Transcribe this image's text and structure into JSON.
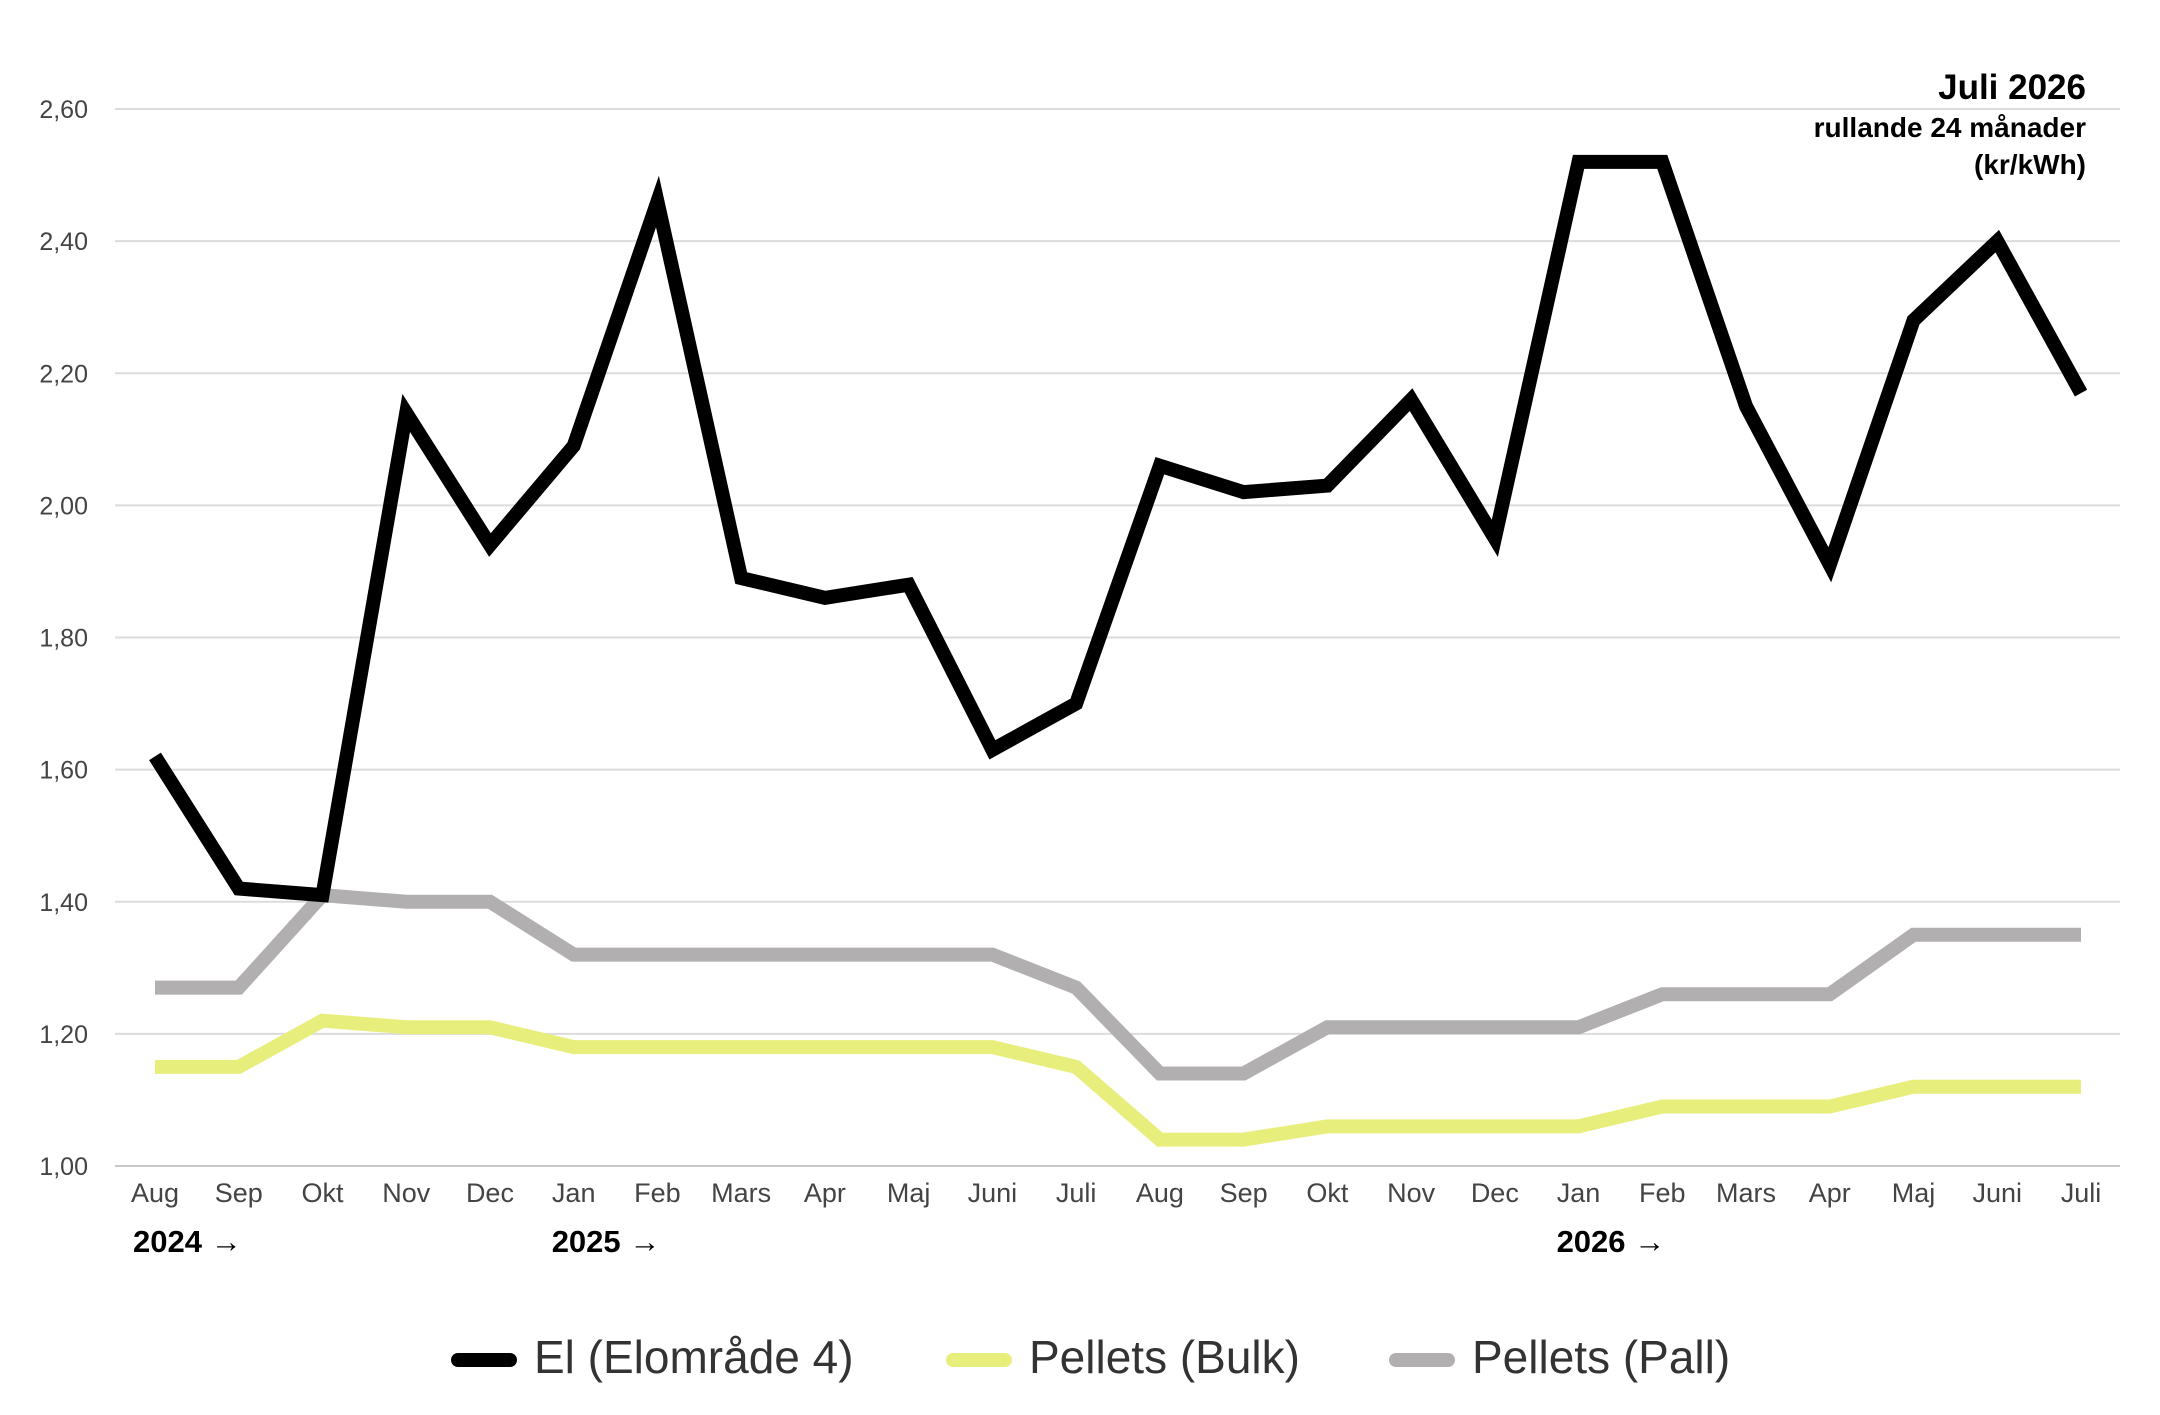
{
  "chart_data": {
    "type": "line",
    "title": "Juli 2026",
    "subtitle": "rullande 24 månader",
    "unit": "(kr/kWh)",
    "ylim": [
      1.0,
      2.6
    ],
    "y_ticks": [
      "1,00",
      "1,20",
      "1,40",
      "1,60",
      "1,80",
      "2,00",
      "2,20",
      "2,40",
      "2,60"
    ],
    "grid": true,
    "legend_position": "bottom",
    "categories": [
      "Aug",
      "Sep",
      "Okt",
      "Nov",
      "Dec",
      "Jan",
      "Feb",
      "Mars",
      "Apr",
      "Maj",
      "Juni",
      "Juli",
      "Aug",
      "Sep",
      "Okt",
      "Nov",
      "Dec",
      "Jan",
      "Feb",
      "Mars",
      "Apr",
      "Maj",
      "Juni",
      "Juli"
    ],
    "year_labels": [
      {
        "label": "2024 →",
        "index": 0
      },
      {
        "label": "2025 →",
        "index": 5
      },
      {
        "label": "2026 →",
        "index": 17
      }
    ],
    "series": [
      {
        "name": "El (Elområde 4)",
        "color": "#000000",
        "values": [
          1.62,
          1.42,
          1.41,
          2.14,
          1.94,
          2.09,
          2.46,
          1.89,
          1.86,
          1.88,
          1.63,
          1.7,
          2.06,
          2.02,
          2.03,
          2.16,
          1.95,
          2.52,
          2.52,
          2.15,
          1.91,
          2.28,
          2.4,
          2.17
        ]
      },
      {
        "name": "Pellets (Bulk)",
        "color": "#e8ee7c",
        "values": [
          1.15,
          1.15,
          1.22,
          1.21,
          1.21,
          1.18,
          1.18,
          1.18,
          1.18,
          1.18,
          1.18,
          1.15,
          1.04,
          1.04,
          1.06,
          1.06,
          1.06,
          1.06,
          1.09,
          1.09,
          1.09,
          1.12,
          1.12,
          1.12
        ]
      },
      {
        "name": "Pellets (Pall)",
        "color": "#b1afb0",
        "values": [
          1.27,
          1.27,
          1.41,
          1.4,
          1.4,
          1.32,
          1.32,
          1.32,
          1.32,
          1.32,
          1.32,
          1.27,
          1.14,
          1.14,
          1.21,
          1.21,
          1.21,
          1.21,
          1.26,
          1.26,
          1.26,
          1.35,
          1.35,
          1.35
        ]
      }
    ]
  }
}
